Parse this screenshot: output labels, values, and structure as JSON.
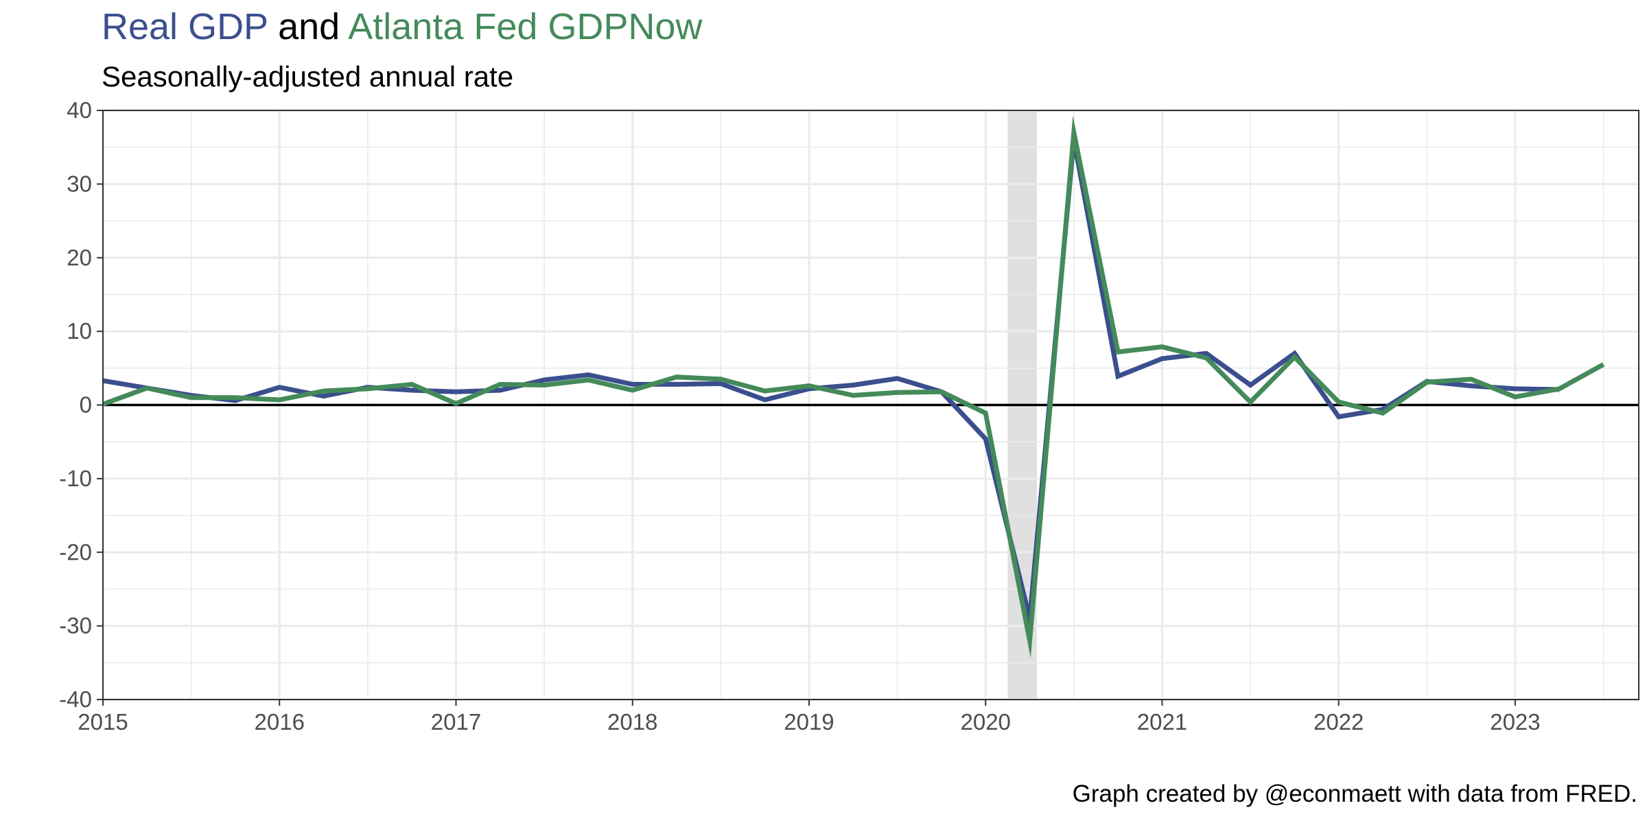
{
  "title": {
    "part1": "Real GDP",
    "part2": " and ",
    "part3": "Atlanta Fed GDPNow"
  },
  "subtitle": "Seasonally-adjusted annual rate",
  "caption": "Graph created by @econmaett with data from FRED.",
  "colors": {
    "real_gdp": "#3b4f8e",
    "gdpnow": "#448a5a",
    "recession": "#e0e0e0",
    "zero_line": "#000000",
    "grid": "#ebebeb"
  },
  "chart_data": {
    "type": "line",
    "title": "Real GDP and Atlanta Fed GDPNow",
    "subtitle": "Seasonally-adjusted annual rate",
    "xlabel": "",
    "ylabel": "",
    "xlim": [
      2015.0,
      2023.7
    ],
    "ylim": [
      -40,
      40
    ],
    "yticks": [
      -40,
      -30,
      -20,
      -10,
      0,
      10,
      20,
      30,
      40
    ],
    "xticks": [
      2015,
      2016,
      2017,
      2018,
      2019,
      2020,
      2021,
      2022,
      2023
    ],
    "grid": true,
    "legend": "none (series named by colored words in title)",
    "recession_shading": [
      2020.125,
      2020.29
    ],
    "series": [
      {
        "name": "Real GDP",
        "color": "#3b4f8e",
        "x": [
          2015.0,
          2015.25,
          2015.5,
          2015.75,
          2016.0,
          2016.25,
          2016.5,
          2016.75,
          2017.0,
          2017.25,
          2017.5,
          2017.75,
          2018.0,
          2018.25,
          2018.5,
          2018.75,
          2019.0,
          2019.25,
          2019.5,
          2019.75,
          2020.0,
          2020.25,
          2020.5,
          2020.75,
          2021.0,
          2021.25,
          2021.5,
          2021.75,
          2022.0,
          2022.25,
          2022.5,
          2022.75,
          2023.0,
          2023.25
        ],
        "y": [
          3.3,
          2.3,
          1.3,
          0.6,
          2.4,
          1.2,
          2.4,
          2.0,
          1.8,
          2.0,
          3.4,
          4.1,
          2.8,
          2.8,
          2.9,
          0.7,
          2.2,
          2.7,
          3.6,
          1.8,
          -4.6,
          -29.0,
          36.0,
          3.9,
          6.3,
          7.0,
          2.7,
          7.0,
          -1.6,
          -0.6,
          3.2,
          2.6,
          2.2,
          2.1
        ]
      },
      {
        "name": "Atlanta Fed GDPNow",
        "color": "#448a5a",
        "x": [
          2015.0,
          2015.25,
          2015.5,
          2015.75,
          2016.0,
          2016.25,
          2016.5,
          2016.75,
          2017.0,
          2017.25,
          2017.5,
          2017.75,
          2018.0,
          2018.25,
          2018.5,
          2018.75,
          2019.0,
          2019.25,
          2019.5,
          2019.75,
          2020.0,
          2020.25,
          2020.5,
          2020.75,
          2021.0,
          2021.25,
          2021.5,
          2021.75,
          2022.0,
          2022.25,
          2022.5,
          2022.75,
          2023.0,
          2023.25,
          2023.5
        ],
        "y": [
          0.1,
          2.3,
          1.0,
          1.0,
          0.7,
          1.9,
          2.2,
          2.8,
          0.2,
          2.8,
          2.7,
          3.4,
          2.0,
          3.8,
          3.5,
          1.9,
          2.6,
          1.3,
          1.7,
          1.8,
          -1.1,
          -32.0,
          37.0,
          7.2,
          7.9,
          6.4,
          0.4,
          6.5,
          0.4,
          -1.1,
          3.1,
          3.5,
          1.1,
          2.2,
          5.5
        ]
      }
    ]
  }
}
